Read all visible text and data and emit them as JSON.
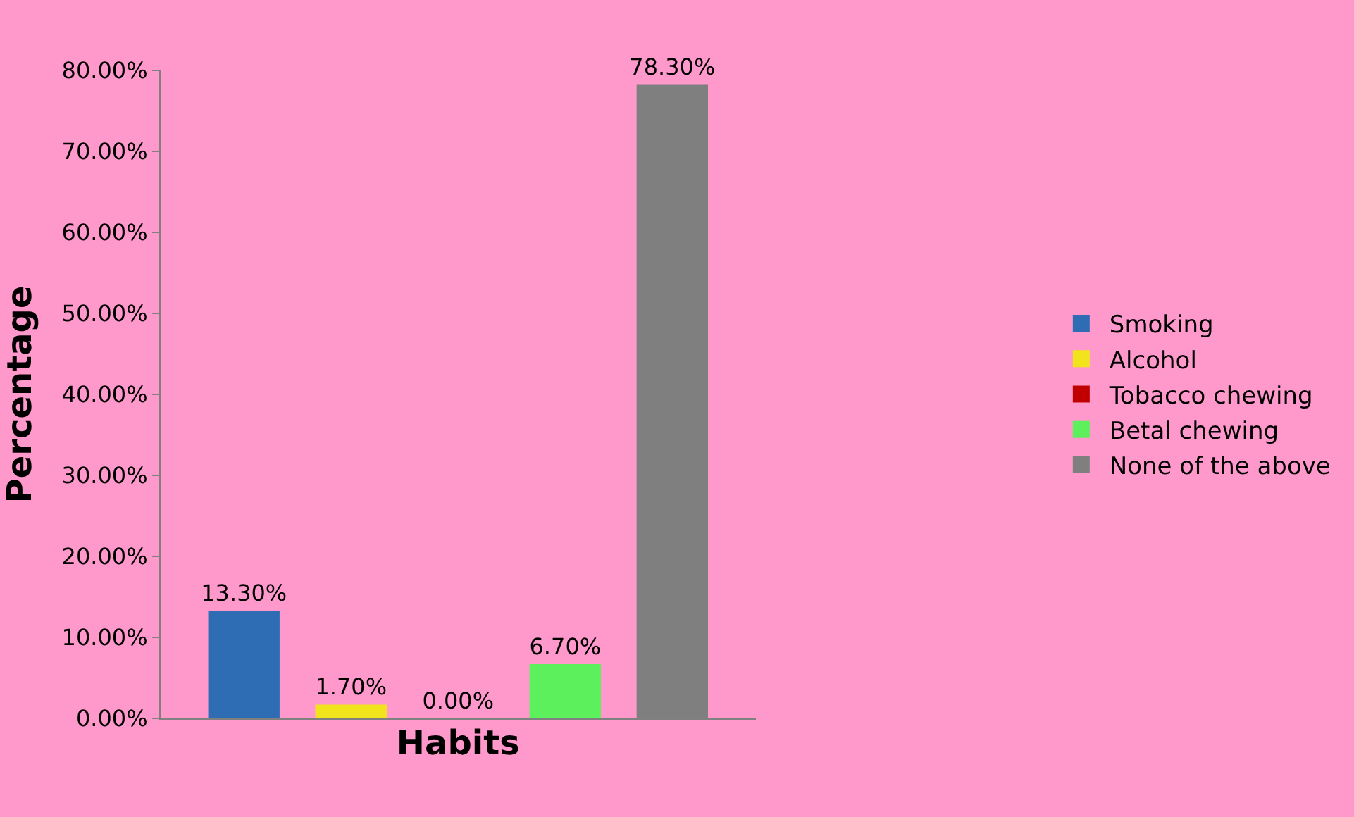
{
  "chart_data": {
    "type": "bar",
    "xlabel": "Habits",
    "ylabel": "Percentage",
    "categories": [
      null
    ],
    "series": [
      {
        "name": "Smoking",
        "color": "#2e6db4",
        "values": [
          13.3
        ],
        "value_labels": [
          "13.30%"
        ]
      },
      {
        "name": "Alcohol",
        "color": "#f2e41c",
        "values": [
          1.7
        ],
        "value_labels": [
          "1.70%"
        ]
      },
      {
        "name": "Tobacco chewing",
        "color": "#c00000",
        "values": [
          0.0
        ],
        "value_labels": [
          "0.00%"
        ]
      },
      {
        "name": "Betal chewing",
        "color": "#5cf05c",
        "values": [
          6.7
        ],
        "value_labels": [
          "6.70%"
        ]
      },
      {
        "name": "None of the above",
        "color": "#7f7f7f",
        "values": [
          78.3
        ],
        "value_labels": [
          "78.30%"
        ]
      }
    ],
    "ylim": [
      0,
      80
    ],
    "yticks": [
      {
        "value": 0,
        "label": "0.00%"
      },
      {
        "value": 10,
        "label": "10.00%"
      },
      {
        "value": 20,
        "label": "20.00%"
      },
      {
        "value": 30,
        "label": "30.00%"
      },
      {
        "value": 40,
        "label": "40.00%"
      },
      {
        "value": 50,
        "label": "50.00%"
      },
      {
        "value": 60,
        "label": "60.00%"
      },
      {
        "value": 70,
        "label": "70.00%"
      },
      {
        "value": 80,
        "label": "80.00%"
      }
    ],
    "grid": false,
    "legend": "right"
  }
}
